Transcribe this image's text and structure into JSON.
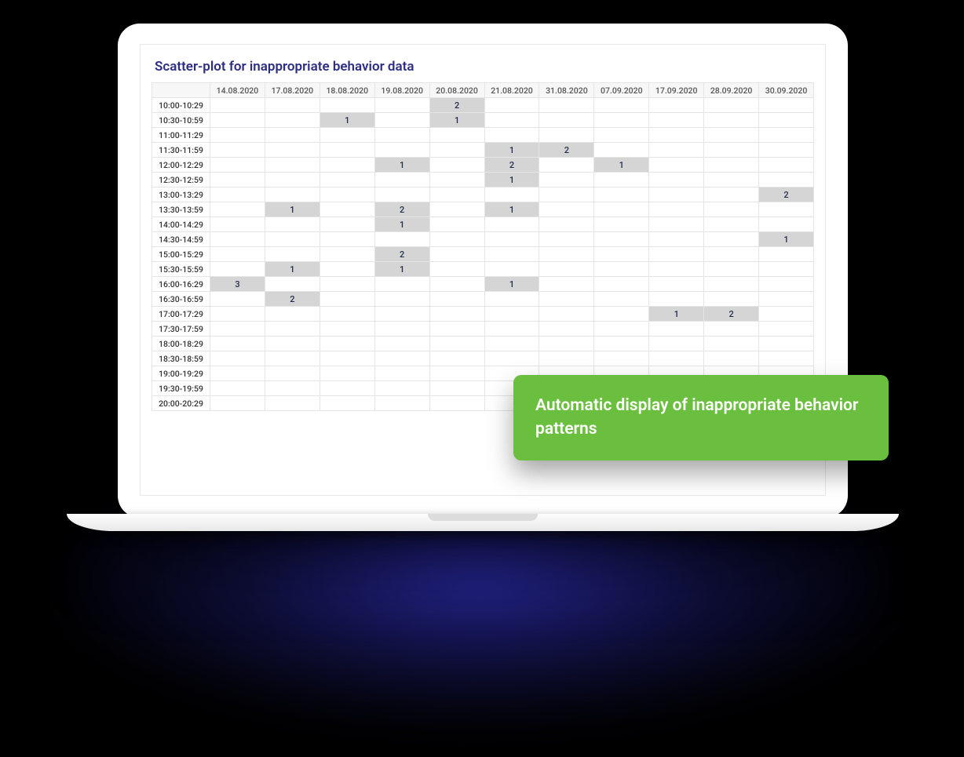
{
  "title": "Scatter-plot for inappropriate behavior data",
  "callout_text": "Automatic display of inappropriate behavior patterns",
  "colors": {
    "title_color": "#2b2e83",
    "grid_border": "#e5e5e5",
    "header_bg": "#f7f7f7",
    "filled_bg": "#d5d5d5",
    "cell_text": "#1e2a4a",
    "callout_bg": "#6bbf3e",
    "callout_text": "#ffffff",
    "shadow_color": "#28289f"
  },
  "table": {
    "type": "heatmap",
    "columns": [
      "14.08.2020",
      "17.08.2020",
      "18.08.2020",
      "19.08.2020",
      "20.08.2020",
      "21.08.2020",
      "31.08.2020",
      "07.09.2020",
      "17.09.2020",
      "28.09.2020",
      "30.09.2020"
    ],
    "rows": [
      "10:00-10:29",
      "10:30-10:59",
      "11:00-11:29",
      "11:30-11:59",
      "12:00-12:29",
      "12:30-12:59",
      "13:00-13:29",
      "13:30-13:59",
      "14:00-14:29",
      "14:30-14:59",
      "15:00-15:29",
      "15:30-15:59",
      "16:00-16:29",
      "16:30-16:59",
      "17:00-17:29",
      "17:30-17:59",
      "18:00-18:29",
      "18:30-18:59",
      "19:00-19:29",
      "19:30-19:59",
      "20:00-20:29"
    ],
    "cells": {
      "10:00-10:29": {
        "20.08.2020": 2
      },
      "10:30-10:59": {
        "18.08.2020": 1,
        "20.08.2020": 1
      },
      "11:30-11:59": {
        "21.08.2020": 1,
        "31.08.2020": 2
      },
      "12:00-12:29": {
        "19.08.2020": 1,
        "21.08.2020": 2,
        "07.09.2020": 1
      },
      "12:30-12:59": {
        "21.08.2020": 1
      },
      "13:00-13:29": {
        "30.09.2020": 2
      },
      "13:30-13:59": {
        "17.08.2020": 1,
        "19.08.2020": 2,
        "21.08.2020": 1
      },
      "14:00-14:29": {
        "19.08.2020": 1
      },
      "14:30-14:59": {
        "30.09.2020": 1
      },
      "15:00-15:29": {
        "19.08.2020": 2
      },
      "15:30-15:59": {
        "17.08.2020": 1,
        "19.08.2020": 1
      },
      "16:00-16:29": {
        "14.08.2020": 3,
        "21.08.2020": 1
      },
      "16:30-16:59": {
        "17.08.2020": 2
      },
      "17:00-17:29": {
        "17.09.2020": 1,
        "28.09.2020": 2
      }
    }
  }
}
